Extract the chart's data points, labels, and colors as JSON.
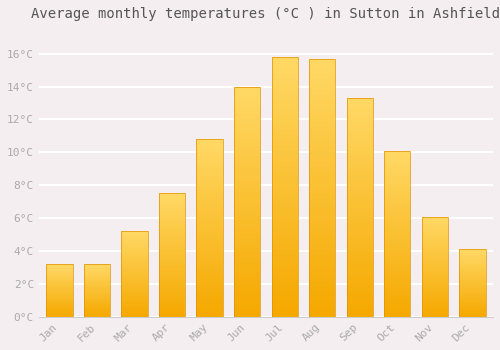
{
  "title": "Average monthly temperatures (°C ) in Sutton in Ashfield",
  "months": [
    "Jan",
    "Feb",
    "Mar",
    "Apr",
    "May",
    "Jun",
    "Jul",
    "Aug",
    "Sep",
    "Oct",
    "Nov",
    "Dec"
  ],
  "values": [
    3.2,
    3.2,
    5.2,
    7.5,
    10.8,
    14.0,
    15.8,
    15.7,
    13.3,
    10.1,
    6.1,
    4.1
  ],
  "bar_color_bottom": "#F5A800",
  "bar_color_top": "#FFD966",
  "background_color": "#F5EEF0",
  "plot_bg_color": "#F5EEF0",
  "grid_color": "#FFFFFF",
  "tick_label_color": "#AAAAAA",
  "title_color": "#555555",
  "ylim": [
    0,
    17.5
  ],
  "yticks": [
    0,
    2,
    4,
    6,
    8,
    10,
    12,
    14,
    16
  ],
  "title_fontsize": 10,
  "tick_fontsize": 8,
  "bar_width": 0.7,
  "n_gradient_steps": 50
}
